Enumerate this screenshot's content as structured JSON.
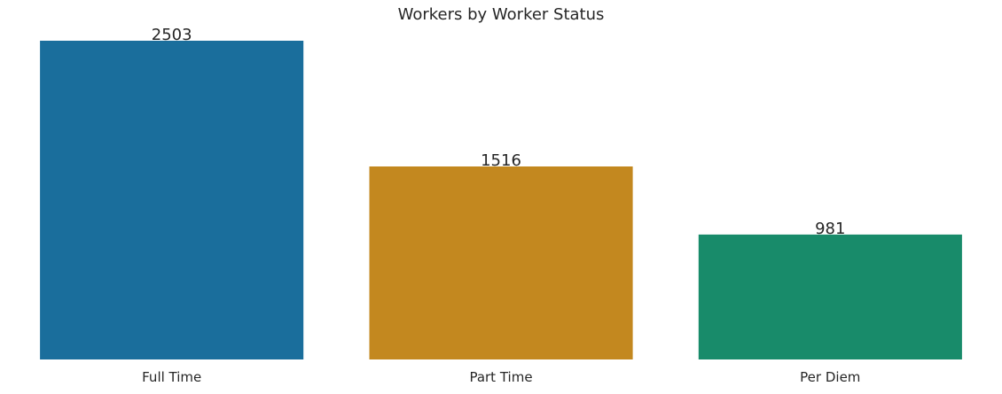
{
  "chart_data": {
    "type": "bar",
    "title": "Workers by Worker Status",
    "xlabel": "",
    "ylabel": "",
    "categories": [
      "Full Time",
      "Part Time",
      "Per Diem"
    ],
    "values": [
      2503,
      1516,
      981
    ],
    "data_labels": [
      "2503",
      "1516",
      "981"
    ],
    "colors": [
      "#1a6e9c",
      "#c3881f",
      "#188b6a"
    ],
    "ylim": [
      0,
      2503
    ],
    "grid": false,
    "legend": "none",
    "y_axis_visible": false
  }
}
